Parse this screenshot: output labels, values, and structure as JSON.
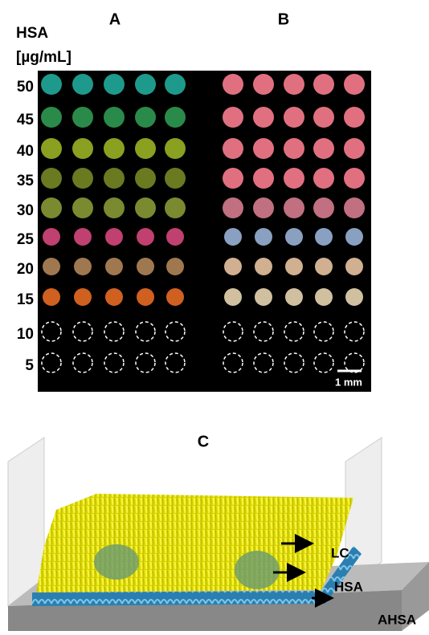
{
  "panels": {
    "a": "A",
    "b": "B",
    "c": "C"
  },
  "axis_title": [
    "HSA",
    "[µg/mL]"
  ],
  "rows": [
    50,
    45,
    40,
    35,
    30,
    25,
    20,
    15,
    10,
    5
  ],
  "scale_bar": "1 mm",
  "diagram_labels": {
    "lc": "LC",
    "hsa": "HSA",
    "ahsa": "AHSA"
  }
}
